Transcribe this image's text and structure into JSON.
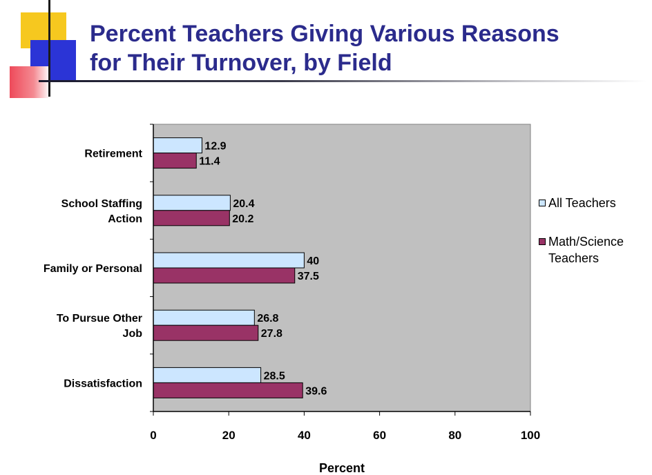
{
  "title": {
    "line1": "Percent Teachers Giving Various Reasons",
    "line2": "for Their Turnover, by Field"
  },
  "colors": {
    "title": "#2b2b8c",
    "plot_background": "#c0c0c0",
    "all_teachers": "#cce6ff",
    "math_science": "#993366",
    "accent_yellow": "#f6c81f",
    "accent_blue": "#2b34d6",
    "accent_red": "#ee4a5a"
  },
  "legend": {
    "all_teachers": "All Teachers",
    "math_science": "Math/Science Teachers"
  },
  "chart_data": {
    "type": "bar",
    "orientation": "horizontal",
    "categories": [
      [
        "Retirement"
      ],
      [
        "School Staffing",
        "Action"
      ],
      [
        "Family or Personal"
      ],
      [
        "To Pursue Other",
        "Job"
      ],
      [
        "Dissatisfaction"
      ]
    ],
    "series": [
      {
        "name": "All Teachers",
        "values": [
          12.9,
          20.4,
          40,
          26.8,
          28.5
        ]
      },
      {
        "name": "Math/Science Teachers",
        "values": [
          11.4,
          20.2,
          37.5,
          27.8,
          39.6
        ]
      }
    ],
    "data_labels": [
      [
        "12.9",
        "20.4",
        "40",
        "26.8",
        "28.5"
      ],
      [
        "11.4",
        "20.2",
        "37.5",
        "27.8",
        "39.6"
      ]
    ],
    "xlabel": "Percent",
    "ylabel": "",
    "xlim": [
      0,
      100
    ],
    "x_ticks": [
      "0",
      "20",
      "40",
      "60",
      "80",
      "100"
    ],
    "grid": false,
    "legend_position": "right"
  }
}
